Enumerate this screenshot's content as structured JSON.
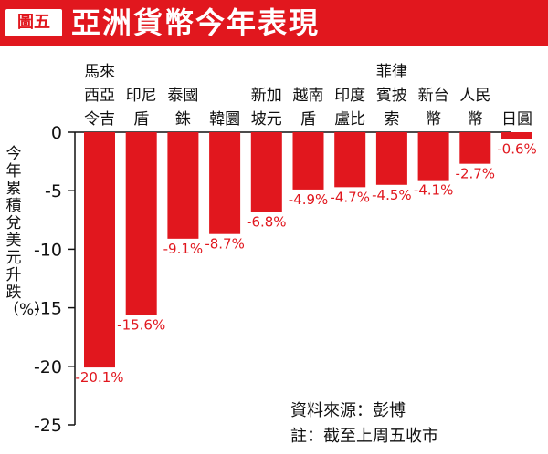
{
  "header": {
    "tag": "圖五",
    "title": "亞洲貨幣今年表現"
  },
  "notes": {
    "source": "資料來源：彭博",
    "note": "註：截至上周五收市"
  },
  "colors": {
    "accent": "#e1171e"
  },
  "chart_data": {
    "type": "bar",
    "categories": [
      [
        "馬來",
        "西亞",
        "令吉"
      ],
      [
        "印尼",
        "盾"
      ],
      [
        "泰國",
        "銖"
      ],
      [
        "韓圜"
      ],
      [
        "新加",
        "坡元"
      ],
      [
        "越南",
        "盾"
      ],
      [
        "印度",
        "盧比"
      ],
      [
        "菲律",
        "賓披",
        "索"
      ],
      [
        "新台",
        "幣"
      ],
      [
        "人民",
        "幣"
      ],
      [
        "日圓"
      ]
    ],
    "values": [
      -20.1,
      -15.6,
      -9.1,
      -8.7,
      -6.8,
      -4.9,
      -4.7,
      -4.5,
      -4.1,
      -2.7,
      -0.6
    ],
    "value_labels": [
      "-20.1%",
      "-15.6%",
      "-9.1%",
      "-8.7%",
      "-6.8%",
      "-4.9%",
      "-4.7%",
      "-4.5%",
      "-4.1%",
      "-2.7%",
      "-0.6%"
    ],
    "ylabel": "今年累積兌美元升跌（%）",
    "ylim": [
      -25,
      0
    ],
    "yticks": [
      0,
      -5,
      -10,
      -15,
      -20,
      -25
    ],
    "ytick_labels": [
      "0",
      "-5",
      "-10",
      "-15",
      "-20",
      "-25"
    ],
    "grid": false,
    "bar_color": "#e1171e"
  }
}
